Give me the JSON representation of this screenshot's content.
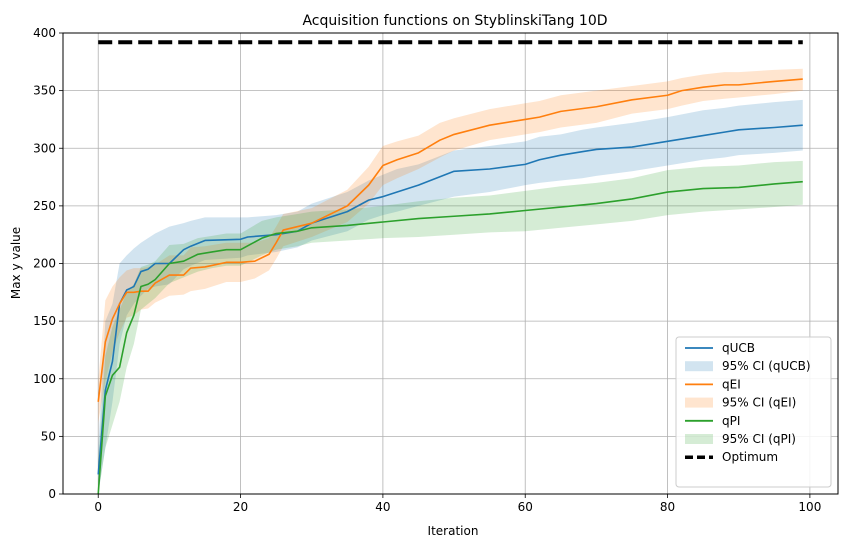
{
  "chart_data": {
    "type": "line",
    "title": "Acquisition functions on StyblinskiTang 10D",
    "xlabel": "Iteration",
    "ylabel": "Max y value",
    "xlim": [
      -4.95,
      103.95
    ],
    "ylim": [
      0,
      400
    ],
    "xticks": [
      0,
      20,
      40,
      60,
      80,
      100
    ],
    "yticks": [
      0,
      50,
      100,
      150,
      200,
      250,
      300,
      350,
      400
    ],
    "grid": true,
    "legend_position": "lower-right",
    "optimum": {
      "label": "Optimum",
      "value": 392,
      "color": "#000000"
    },
    "series": [
      {
        "name": "qUCB",
        "ci_label": "95% CI (qUCB)",
        "color": "#1f77b4",
        "x": [
          0,
          1,
          2,
          3,
          4,
          5,
          6,
          7,
          8,
          10,
          12,
          13,
          15,
          20,
          21,
          25,
          28,
          30,
          35,
          38,
          40,
          42,
          45,
          50,
          55,
          60,
          62,
          65,
          68,
          70,
          75,
          80,
          85,
          88,
          90,
          95,
          99
        ],
        "y": [
          17,
          90,
          115,
          165,
          177,
          180,
          193,
          195,
          200,
          200,
          212,
          215,
          220,
          221,
          223,
          225,
          228,
          235,
          245,
          255,
          258,
          262,
          268,
          280,
          282,
          286,
          290,
          294,
          297,
          299,
          301,
          306,
          311,
          314,
          316,
          318,
          320
        ],
        "ci_lower": [
          0,
          40,
          80,
          130,
          155,
          165,
          172,
          178,
          180,
          182,
          195,
          198,
          203,
          205,
          207,
          210,
          214,
          220,
          228,
          238,
          242,
          245,
          250,
          258,
          262,
          268,
          270,
          272,
          274,
          276,
          280,
          285,
          290,
          292,
          294,
          296,
          298
        ],
        "ci_upper": [
          40,
          150,
          165,
          200,
          207,
          213,
          218,
          222,
          226,
          232,
          235,
          237,
          240,
          240,
          240,
          242,
          245,
          252,
          262,
          272,
          277,
          282,
          286,
          298,
          302,
          306,
          310,
          312,
          316,
          318,
          322,
          327,
          333,
          335,
          337,
          340,
          342
        ]
      },
      {
        "name": "qEI",
        "ci_label": "95% CI (qEI)",
        "color": "#ff7f0e",
        "x": [
          0,
          1,
          2,
          3,
          4,
          5,
          6,
          7,
          8,
          10,
          12,
          13,
          15,
          18,
          20,
          22,
          24,
          25,
          26,
          30,
          35,
          38,
          40,
          42,
          45,
          48,
          50,
          55,
          60,
          62,
          65,
          70,
          75,
          80,
          82,
          85,
          88,
          90,
          95,
          99
        ],
        "y": [
          80,
          132,
          152,
          165,
          175,
          175,
          176,
          176,
          183,
          190,
          190,
          196,
          197,
          201,
          201,
          202,
          208,
          218,
          229,
          235,
          250,
          268,
          285,
          290,
          296,
          307,
          312,
          320,
          325,
          327,
          332,
          336,
          342,
          346,
          350,
          353,
          355,
          355,
          358,
          360
        ],
        "ci_lower": [
          62,
          98,
          123,
          140,
          153,
          155,
          160,
          161,
          166,
          172,
          173,
          176,
          178,
          184,
          184,
          187,
          194,
          204,
          215,
          223,
          236,
          252,
          268,
          274,
          282,
          292,
          298,
          307,
          312,
          314,
          318,
          322,
          330,
          334,
          337,
          341,
          343,
          344,
          347,
          350
        ],
        "ci_upper": [
          98,
          168,
          180,
          188,
          194,
          196,
          196,
          197,
          199,
          207,
          207,
          214,
          215,
          218,
          218,
          218,
          222,
          232,
          243,
          248,
          264,
          284,
          302,
          306,
          311,
          322,
          326,
          334,
          339,
          341,
          346,
          350,
          354,
          358,
          361,
          364,
          366,
          366,
          368,
          369
        ]
      },
      {
        "name": "qPI",
        "ci_label": "95% CI (qPI)",
        "color": "#2ca02c",
        "x": [
          0,
          1,
          2,
          3,
          4,
          5,
          6,
          7,
          8,
          10,
          12,
          14,
          16,
          18,
          20,
          23,
          25,
          28,
          30,
          35,
          40,
          45,
          50,
          55,
          60,
          65,
          70,
          75,
          80,
          85,
          90,
          95,
          99
        ],
        "y": [
          0,
          85,
          103,
          110,
          140,
          155,
          180,
          182,
          186,
          200,
          202,
          208,
          210,
          212,
          212,
          222,
          226,
          228,
          231,
          233,
          236,
          239,
          241,
          243,
          246,
          249,
          252,
          256,
          262,
          265,
          266,
          269,
          271
        ],
        "ci_lower": [
          0,
          40,
          60,
          80,
          110,
          130,
          160,
          165,
          170,
          183,
          188,
          193,
          196,
          198,
          198,
          207,
          212,
          215,
          218,
          220,
          222,
          223,
          225,
          227,
          228,
          231,
          234,
          237,
          242,
          245,
          247,
          249,
          251
        ],
        "ci_upper": [
          30,
          120,
          145,
          160,
          175,
          182,
          197,
          199,
          202,
          216,
          217,
          222,
          224,
          226,
          226,
          237,
          240,
          243,
          245,
          247,
          250,
          254,
          257,
          259,
          263,
          267,
          270,
          274,
          281,
          284,
          285,
          288,
          289
        ]
      }
    ]
  }
}
